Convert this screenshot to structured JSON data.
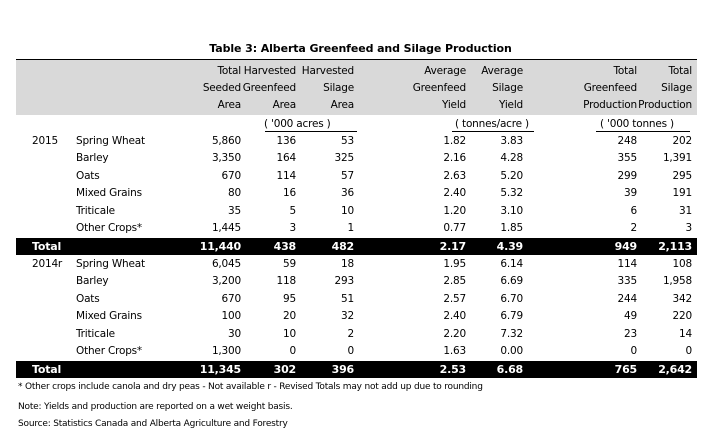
{
  "title": "Table 3:  Alberta Greenfeed and Silage Production",
  "headers": [
    [
      "Total",
      "Seeded",
      "Area"
    ],
    [
      "Harvested",
      "Greenfeed",
      "Area"
    ],
    [
      "Harvested",
      "Silage",
      "Area"
    ],
    [
      "Average",
      "Greenfeed",
      "Yield"
    ],
    [
      "Average",
      "Silage",
      "Yield"
    ],
    [
      "Total",
      "Greenfeed",
      "Production"
    ],
    [
      "Total",
      "Silage",
      "Production"
    ]
  ],
  "units": {
    "area": "( '000 acres )",
    "yield": "( tonnes/acre )",
    "production": "( '000 tonnes )"
  },
  "sections": [
    {
      "year": "2015",
      "rows": [
        {
          "crop": "Spring Wheat",
          "v": [
            "5,860",
            "136",
            "53",
            "1.82",
            "3.83",
            "248",
            "202"
          ]
        },
        {
          "crop": "Barley",
          "v": [
            "3,350",
            "164",
            "325",
            "2.16",
            "4.28",
            "355",
            "1,391"
          ]
        },
        {
          "crop": "Oats",
          "v": [
            "670",
            "114",
            "57",
            "2.63",
            "5.20",
            "299",
            "295"
          ]
        },
        {
          "crop": "Mixed Grains",
          "v": [
            "80",
            "16",
            "36",
            "2.40",
            "5.32",
            "39",
            "191"
          ]
        },
        {
          "crop": "Triticale",
          "v": [
            "35",
            "5",
            "10",
            "1.20",
            "3.10",
            "6",
            "31"
          ]
        },
        {
          "crop": "Other Crops*",
          "v": [
            "1,445",
            "3",
            "1",
            "0.77",
            "1.85",
            "2",
            "3"
          ]
        }
      ],
      "total": {
        "crop": "Total",
        "v": [
          "11,440",
          "438",
          "482",
          "2.17",
          "4.39",
          "949",
          "2,113"
        ]
      }
    },
    {
      "year": "2014r",
      "rows": [
        {
          "crop": "Spring Wheat",
          "v": [
            "6,045",
            "59",
            "18",
            "1.95",
            "6.14",
            "114",
            "108"
          ]
        },
        {
          "crop": "Barley",
          "v": [
            "3,200",
            "118",
            "293",
            "2.85",
            "6.69",
            "335",
            "1,958"
          ]
        },
        {
          "crop": "Oats",
          "v": [
            "670",
            "95",
            "51",
            "2.57",
            "6.70",
            "244",
            "342"
          ]
        },
        {
          "crop": "Mixed Grains",
          "v": [
            "100",
            "20",
            "32",
            "2.40",
            "6.79",
            "49",
            "220"
          ]
        },
        {
          "crop": "Triticale",
          "v": [
            "30",
            "10",
            "2",
            "2.20",
            "7.32",
            "23",
            "14"
          ]
        },
        {
          "crop": "Other Crops*",
          "v": [
            "1,300",
            "0",
            "0",
            "1.63",
            "0.00",
            "0",
            "0"
          ]
        }
      ],
      "total": {
        "crop": "Total",
        "v": [
          "11,345",
          "302",
          "396",
          "2.53",
          "6.68",
          "765",
          "2,642"
        ]
      }
    }
  ],
  "footnotes": [
    "* Other crops include canola and dry peas   - Not available   r - Revised   Totals may not add up due to rounding",
    "Note:  Yields and production are reported on a wet weight basis.",
    "Source: Statistics Canada and Alberta Agriculture and Forestry"
  ]
}
